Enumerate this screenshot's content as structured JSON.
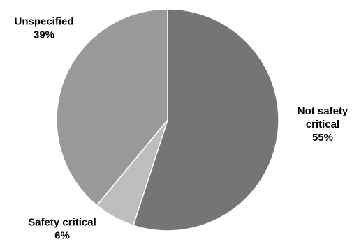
{
  "chart_data": {
    "type": "pie",
    "title": "",
    "start": "top, clockwise",
    "slices": [
      {
        "label_lines": [
          "Not safety",
          "critical"
        ],
        "percent_label": "55%",
        "value": 55,
        "color": "#757575"
      },
      {
        "label_lines": [
          "Safety critical"
        ],
        "percent_label": "6%",
        "value": 6,
        "color": "#bdbdbd"
      },
      {
        "label_lines": [
          "Unspecified"
        ],
        "percent_label": "39%",
        "value": 39,
        "color": "#999999"
      }
    ],
    "legend": "none"
  }
}
